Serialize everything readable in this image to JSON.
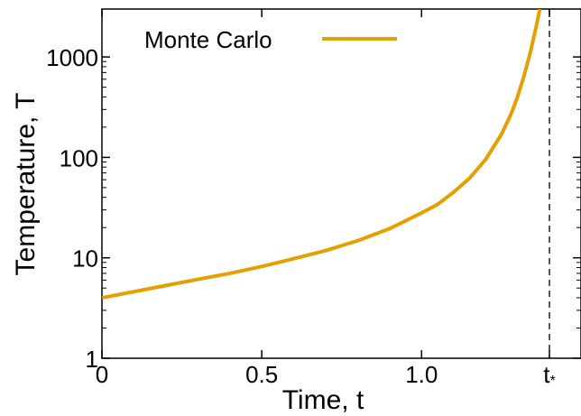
{
  "chart_data": {
    "type": "line",
    "title": "",
    "xlabel": "Time, t",
    "ylabel": "Temperature, T",
    "xlim": [
      0,
      1.4
    ],
    "ylim": [
      1,
      3000
    ],
    "yscale": "log",
    "x_ticks": [
      {
        "value": 0,
        "label": "0"
      },
      {
        "value": 0.5,
        "label": "0.5"
      },
      {
        "value": 1.0,
        "label": "1.0"
      },
      {
        "value": 1.4,
        "label": "t*"
      }
    ],
    "y_ticks": [
      {
        "value": 1,
        "label": "1"
      },
      {
        "value": 10,
        "label": "10"
      },
      {
        "value": 100,
        "label": "100"
      },
      {
        "value": 1000,
        "label": "1000"
      }
    ],
    "grid": false,
    "legend": {
      "placement": "top-left"
    },
    "series": [
      {
        "name": "Monte Carlo",
        "color": "#e69f00",
        "x": [
          0,
          0.1,
          0.2,
          0.3,
          0.4,
          0.5,
          0.6,
          0.7,
          0.8,
          0.9,
          1.0,
          1.05,
          1.1,
          1.15,
          1.2,
          1.25,
          1.28,
          1.3,
          1.32,
          1.34,
          1.36,
          1.37
        ],
        "y": [
          4.0,
          4.6,
          5.3,
          6.1,
          7.0,
          8.2,
          9.8,
          11.8,
          14.8,
          19.5,
          28.0,
          34.0,
          45.0,
          62.0,
          95.0,
          170.0,
          270.0,
          400.0,
          640.0,
          1100.0,
          2100.0,
          3000.0
        ]
      }
    ],
    "annotations": [
      {
        "type": "vline",
        "x": 1.4,
        "style": "dashed",
        "label": "t*"
      }
    ]
  }
}
